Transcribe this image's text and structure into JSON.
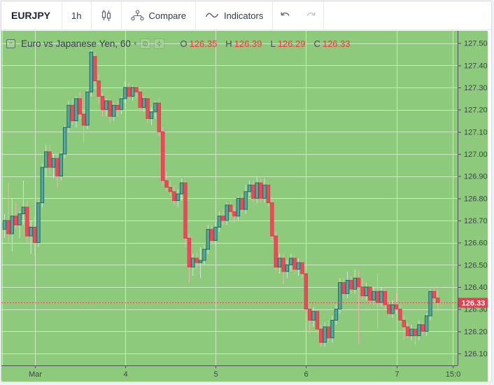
{
  "toolbar": {
    "symbol": "EURJPY",
    "interval": "1h",
    "compare_label": "Compare",
    "indicators_label": "Indicators"
  },
  "legend": {
    "collapse_glyph": "−",
    "title": "Euro vs Japanese Yen, 60",
    "caret": "▾",
    "ohlc": {
      "o_label": "O",
      "o": "126.35",
      "h_label": "H",
      "h": "126.39",
      "l_label": "L",
      "l": "126.29",
      "c_label": "C",
      "c": "126.33"
    }
  },
  "price_axis": {
    "ticks": [
      "127.50",
      "127.40",
      "127.30",
      "127.20",
      "127.10",
      "127.00",
      "126.90",
      "126.80",
      "126.70",
      "126.60",
      "126.50",
      "126.40",
      "126.30",
      "126.20",
      "126.10"
    ],
    "last_price_label": "126.33"
  },
  "time_axis": {
    "ticks": [
      {
        "label": "Mar",
        "index": 8
      },
      {
        "label": "4",
        "index": 32
      },
      {
        "label": "5",
        "index": 56
      },
      {
        "label": "6",
        "index": 80
      },
      {
        "label": "7",
        "index": 104
      },
      {
        "label": "15:0",
        "index": 119
      }
    ]
  },
  "colors": {
    "chart_bg": "#8eca7b",
    "grid": "rgba(255,255,255,0.55)",
    "axis_line": "#4d5258",
    "axis_text": "#3f444c",
    "up_fill": "#55a79b",
    "up_border": "#206b61",
    "down_fill": "#ec4b5b",
    "down_border": "#e13a4d",
    "wick_up": "#cde6df",
    "wick_down": "#f5afb5",
    "last_price_line": "#e8495c",
    "last_price_bg": "#e93c4f",
    "last_price_text": "#ffffff",
    "ohlc_value": "#f23645"
  },
  "chart_data": {
    "type": "candlestick",
    "title": "Euro vs Japanese Yen, 60",
    "symbol": "EURJPY",
    "interval_minutes": 60,
    "price_min": 126.1,
    "price_max": 127.5,
    "last_price": 126.33,
    "candles": [
      [
        126.66,
        126.73,
        126.62,
        126.7
      ],
      [
        126.7,
        126.87,
        126.6,
        126.64
      ],
      [
        126.64,
        126.8,
        126.56,
        126.72
      ],
      [
        126.72,
        126.78,
        126.66,
        126.68
      ],
      [
        126.68,
        126.74,
        126.62,
        126.73
      ],
      [
        126.73,
        126.88,
        126.68,
        126.76
      ],
      [
        126.76,
        126.79,
        126.6,
        126.63
      ],
      [
        126.63,
        126.7,
        126.55,
        126.67
      ],
      [
        126.67,
        126.72,
        126.54,
        126.6
      ],
      [
        126.6,
        126.79,
        126.58,
        126.78
      ],
      [
        126.78,
        126.96,
        126.76,
        126.94
      ],
      [
        126.94,
        127.04,
        126.9,
        127.01
      ],
      [
        127.01,
        127.04,
        126.91,
        126.94
      ],
      [
        126.94,
        127.0,
        126.89,
        126.98
      ],
      [
        126.98,
        127.0,
        126.85,
        126.9
      ],
      [
        126.9,
        127.01,
        126.88,
        127.0
      ],
      [
        127.0,
        127.13,
        126.98,
        127.12
      ],
      [
        127.12,
        127.24,
        127.1,
        127.22
      ],
      [
        127.22,
        127.25,
        127.13,
        127.15
      ],
      [
        127.15,
        127.26,
        127.12,
        127.25
      ],
      [
        127.25,
        127.28,
        127.16,
        127.18
      ],
      [
        127.18,
        127.2,
        127.05,
        127.13
      ],
      [
        127.13,
        127.29,
        127.11,
        127.28
      ],
      [
        127.28,
        127.47,
        127.26,
        127.46
      ],
      [
        127.44,
        127.46,
        127.3,
        127.33
      ],
      [
        127.33,
        127.36,
        127.23,
        127.26
      ],
      [
        127.26,
        127.28,
        127.17,
        127.2
      ],
      [
        127.2,
        127.25,
        127.17,
        127.24
      ],
      [
        127.24,
        127.25,
        127.14,
        127.17
      ],
      [
        127.17,
        127.23,
        127.15,
        127.22
      ],
      [
        127.22,
        127.24,
        127.17,
        127.2
      ],
      [
        127.2,
        127.26,
        127.18,
        127.25
      ],
      [
        127.25,
        127.33,
        127.23,
        127.3
      ],
      [
        127.3,
        127.32,
        127.24,
        127.26
      ],
      [
        127.26,
        127.31,
        127.24,
        127.3
      ],
      [
        127.3,
        127.31,
        127.25,
        127.28
      ],
      [
        127.28,
        127.29,
        127.19,
        127.21
      ],
      [
        127.21,
        127.26,
        127.19,
        127.25
      ],
      [
        127.25,
        127.26,
        127.14,
        127.16
      ],
      [
        127.16,
        127.21,
        127.13,
        127.19
      ],
      [
        127.19,
        127.24,
        127.16,
        127.23
      ],
      [
        127.23,
        127.25,
        127.08,
        127.1
      ],
      [
        127.1,
        127.12,
        126.86,
        126.88
      ],
      [
        126.88,
        126.92,
        126.83,
        126.85
      ],
      [
        126.85,
        126.88,
        126.81,
        126.83
      ],
      [
        126.83,
        126.86,
        126.77,
        126.79
      ],
      [
        126.79,
        126.84,
        126.76,
        126.82
      ],
      [
        126.82,
        126.89,
        126.79,
        126.87
      ],
      [
        126.87,
        126.88,
        126.58,
        126.62
      ],
      [
        126.62,
        126.64,
        126.42,
        126.49
      ],
      [
        126.49,
        126.55,
        126.45,
        126.53
      ],
      [
        126.53,
        126.56,
        126.48,
        126.51
      ],
      [
        126.51,
        126.58,
        126.44,
        126.52
      ],
      [
        126.52,
        126.59,
        126.5,
        126.57
      ],
      [
        126.57,
        126.68,
        126.55,
        126.66
      ],
      [
        126.66,
        126.68,
        126.59,
        126.61
      ],
      [
        126.61,
        126.69,
        126.59,
        126.67
      ],
      [
        126.67,
        126.74,
        126.65,
        126.72
      ],
      [
        126.72,
        126.75,
        126.68,
        126.7
      ],
      [
        126.7,
        126.78,
        126.68,
        126.77
      ],
      [
        126.77,
        126.79,
        126.71,
        126.74
      ],
      [
        126.74,
        126.76,
        126.69,
        126.72
      ],
      [
        126.72,
        126.81,
        126.7,
        126.8
      ],
      [
        126.8,
        126.82,
        126.73,
        126.75
      ],
      [
        126.75,
        126.86,
        126.73,
        126.83
      ],
      [
        126.83,
        126.88,
        126.81,
        126.86
      ],
      [
        126.86,
        126.88,
        126.78,
        126.8
      ],
      [
        126.8,
        126.9,
        126.78,
        126.87
      ],
      [
        126.87,
        126.89,
        126.78,
        126.8
      ],
      [
        126.8,
        126.89,
        126.78,
        126.86
      ],
      [
        126.86,
        126.87,
        126.76,
        126.78
      ],
      [
        126.78,
        126.81,
        126.61,
        126.63
      ],
      [
        126.63,
        126.65,
        126.47,
        126.49
      ],
      [
        126.49,
        126.55,
        126.46,
        126.53
      ],
      [
        126.53,
        126.55,
        126.41,
        126.47
      ],
      [
        126.47,
        126.52,
        126.44,
        126.5
      ],
      [
        126.5,
        126.55,
        126.47,
        126.53
      ],
      [
        126.53,
        126.54,
        126.46,
        126.48
      ],
      [
        126.48,
        126.53,
        126.45,
        126.51
      ],
      [
        126.51,
        126.52,
        126.44,
        126.46
      ],
      [
        126.46,
        126.47,
        126.28,
        126.3
      ],
      [
        126.3,
        126.32,
        126.19,
        126.25
      ],
      [
        126.25,
        126.31,
        126.22,
        126.29
      ],
      [
        126.29,
        126.3,
        126.19,
        126.21
      ],
      [
        126.21,
        126.23,
        126.13,
        126.15
      ],
      [
        126.15,
        126.24,
        126.13,
        126.22
      ],
      [
        126.22,
        126.25,
        126.15,
        126.17
      ],
      [
        126.17,
        126.27,
        126.15,
        126.25
      ],
      [
        126.25,
        126.32,
        126.23,
        126.3
      ],
      [
        126.3,
        126.44,
        126.28,
        126.42
      ],
      [
        126.42,
        126.44,
        126.35,
        126.37
      ],
      [
        126.37,
        126.47,
        126.35,
        126.43
      ],
      [
        126.43,
        126.45,
        126.37,
        126.39
      ],
      [
        126.39,
        126.48,
        126.37,
        126.44
      ],
      [
        126.44,
        126.48,
        126.14,
        126.4
      ],
      [
        126.4,
        126.44,
        126.34,
        126.36
      ],
      [
        126.36,
        126.42,
        126.34,
        126.4
      ],
      [
        126.4,
        126.41,
        126.32,
        126.34
      ],
      [
        126.34,
        126.4,
        126.32,
        126.38
      ],
      [
        126.38,
        126.46,
        126.21,
        126.33
      ],
      [
        126.33,
        126.4,
        126.31,
        126.38
      ],
      [
        126.38,
        126.39,
        126.3,
        126.32
      ],
      [
        126.32,
        126.34,
        126.26,
        126.28
      ],
      [
        126.28,
        126.34,
        126.26,
        126.32
      ],
      [
        126.32,
        126.37,
        126.28,
        126.3
      ],
      [
        126.3,
        126.32,
        126.24,
        126.25
      ],
      [
        126.25,
        126.27,
        126.16,
        126.22
      ],
      [
        126.22,
        126.24,
        126.17,
        126.18
      ],
      [
        126.18,
        126.23,
        126.16,
        126.21
      ],
      [
        126.21,
        126.22,
        126.14,
        126.18
      ],
      [
        126.18,
        126.25,
        126.16,
        126.23
      ],
      [
        126.23,
        126.24,
        126.18,
        126.2
      ],
      [
        126.2,
        126.28,
        126.18,
        126.27
      ],
      [
        126.27,
        126.39,
        126.25,
        126.38
      ],
      [
        126.38,
        126.4,
        126.33,
        126.35
      ],
      [
        126.35,
        126.39,
        126.29,
        126.33
      ]
    ]
  }
}
